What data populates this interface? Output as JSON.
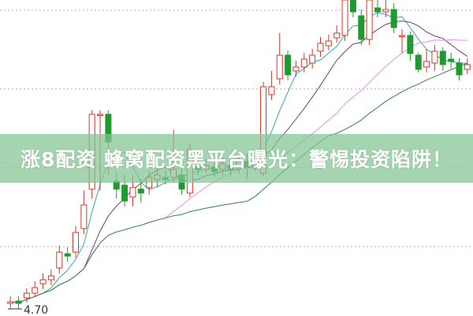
{
  "banner": {
    "title": "涨8配资 蜂窝配资黑平台曝光：警惕投资陷阱！"
  },
  "chart_data": {
    "type": "candlestick",
    "ylim": [
      4.61,
      8.62
    ],
    "grid": "dotted horizontal",
    "gridlines": [
      8.49,
      7.49,
      6.49,
      5.49
    ],
    "annotations": [
      {
        "text": "4.70",
        "marks": "low price"
      }
    ],
    "colors": {
      "up": "#d9342b",
      "down": "#1f9a2e",
      "ma5": "#3aa6b0",
      "ma10": "#7a3a78",
      "ma20": "#e58ee0",
      "ma30": "#2e8a3a",
      "grid": "#aaaaaa"
    },
    "candles": [
      [
        4.77,
        4.79,
        4.86,
        4.7
      ],
      [
        4.8,
        4.77,
        4.86,
        4.7
      ],
      [
        4.84,
        4.9,
        4.96,
        4.78
      ],
      [
        4.9,
        4.97,
        5.05,
        4.85
      ],
      [
        5.02,
        5.07,
        5.15,
        4.95
      ],
      [
        5.07,
        5.12,
        5.2,
        5.0
      ],
      [
        5.22,
        5.42,
        5.5,
        5.15
      ],
      [
        5.4,
        5.37,
        5.48,
        5.3
      ],
      [
        5.42,
        5.67,
        5.75,
        5.35
      ],
      [
        5.72,
        6.02,
        6.2,
        5.65
      ],
      [
        6.22,
        7.17,
        7.22,
        6.1
      ],
      [
        7.17,
        7.17,
        7.22,
        6.2
      ],
      [
        7.17,
        6.82,
        7.22,
        6.4
      ],
      [
        6.32,
        6.22,
        6.45,
        6.1
      ],
      [
        6.27,
        6.07,
        6.4,
        6.0
      ],
      [
        6.12,
        6.24,
        6.4,
        6.0
      ],
      [
        6.22,
        6.17,
        6.35,
        6.05
      ],
      [
        6.24,
        6.37,
        6.45,
        6.15
      ],
      [
        6.34,
        6.4,
        6.48,
        6.25
      ],
      [
        6.37,
        6.34,
        6.46,
        6.28
      ],
      [
        6.37,
        6.47,
        6.97,
        6.3
      ],
      [
        6.4,
        6.22,
        6.48,
        6.15
      ],
      [
        6.17,
        6.72,
        6.8,
        6.12
      ],
      [
        6.5,
        6.47,
        6.6,
        6.4
      ],
      [
        6.47,
        6.52,
        6.6,
        6.42
      ],
      [
        6.5,
        6.44,
        6.58,
        6.38
      ],
      [
        6.47,
        6.54,
        6.62,
        6.4
      ],
      [
        6.52,
        6.47,
        6.62,
        6.38
      ],
      [
        6.5,
        6.57,
        6.65,
        6.42
      ],
      [
        6.57,
        6.5,
        6.68,
        6.35
      ],
      [
        6.52,
        6.62,
        6.7,
        6.45
      ],
      [
        6.42,
        7.52,
        7.58,
        6.38
      ],
      [
        7.42,
        7.52,
        7.72,
        7.35
      ],
      [
        7.62,
        7.92,
        8.2,
        7.55
      ],
      [
        7.92,
        7.67,
        7.98,
        7.6
      ],
      [
        7.72,
        7.77,
        7.85,
        7.65
      ],
      [
        7.77,
        7.87,
        7.95,
        7.7
      ],
      [
        7.82,
        7.92,
        8.0,
        7.75
      ],
      [
        7.97,
        8.07,
        8.15,
        7.9
      ],
      [
        8.04,
        8.1,
        8.18,
        7.98
      ],
      [
        8.14,
        8.2,
        8.3,
        8.08
      ],
      [
        8.17,
        8.62,
        8.75,
        8.1
      ],
      [
        8.62,
        8.47,
        8.75,
        8.4
      ],
      [
        8.42,
        8.12,
        8.5,
        8.05
      ],
      [
        8.12,
        8.62,
        8.75,
        8.05
      ],
      [
        8.52,
        8.47,
        8.7,
        8.4
      ],
      [
        8.47,
        8.5,
        8.62,
        8.4
      ],
      [
        8.5,
        8.27,
        8.58,
        8.2
      ],
      [
        8.17,
        8.17,
        8.25,
        7.95
      ],
      [
        8.17,
        7.94,
        8.22,
        7.85
      ],
      [
        7.92,
        7.74,
        7.95,
        7.7
      ],
      [
        7.77,
        7.84,
        8.0,
        7.7
      ],
      [
        7.82,
        7.97,
        8.05,
        7.72
      ],
      [
        7.97,
        7.8,
        8.02,
        7.72
      ],
      [
        7.87,
        7.84,
        7.95,
        7.75
      ],
      [
        7.82,
        7.67,
        7.88,
        7.6
      ],
      [
        7.74,
        7.8,
        7.88,
        7.68
      ]
    ]
  }
}
